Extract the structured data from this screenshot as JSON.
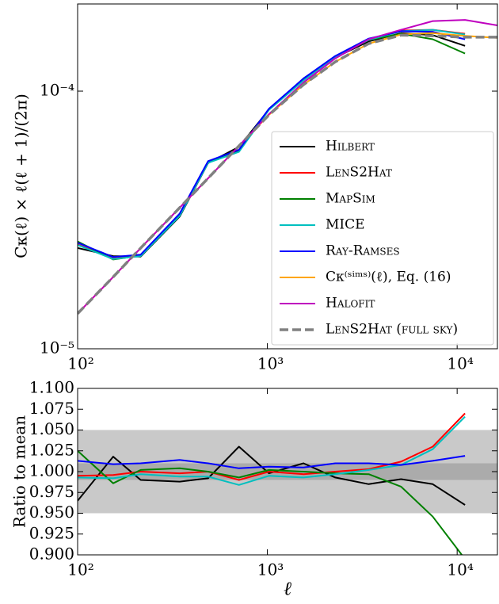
{
  "chart_data": [
    {
      "type": "line",
      "ylabel": "Cκ(ℓ)  × ℓ(ℓ + 1)/(2π)",
      "xscale": "log",
      "yscale": "log",
      "xlim": [
        100,
        16300
      ],
      "ylim": [
        1e-05,
        0.000218
      ],
      "xticks": [
        {
          "value": 100,
          "label": "10²"
        },
        {
          "value": 1000,
          "label": "10³"
        },
        {
          "value": 10000,
          "label": "10⁴"
        }
      ],
      "yticks": [
        {
          "value": 1e-05,
          "label": "10⁻⁵"
        },
        {
          "value": 0.0001,
          "label": "10⁻⁴"
        }
      ],
      "legend": "lower right",
      "series": [
        {
          "name": "Hilbert",
          "smallcaps": true,
          "color": "#000000",
          "x": [
            100,
            154,
            215,
            345,
            487,
            708,
            1020,
            1550,
            2280,
            3420,
            5060,
            7430,
            11000
          ],
          "values": [
            2.46e-05,
            2.29e-05,
            2.28e-05,
            3.26e-05,
            5.26e-05,
            6.08e-05,
            8.48e-05,
            0.000112,
            0.000135,
            0.000156,
            0.000168,
            0.000165,
            0.00015
          ]
        },
        {
          "name": "LenS2Hat",
          "smallcaps": true,
          "color": "#ff0000",
          "x": [
            100,
            154,
            215,
            345,
            487,
            708,
            1020,
            1550,
            2280,
            3420,
            5060,
            7430,
            11000
          ],
          "values": [
            2.54e-05,
            2.24e-05,
            2.3e-05,
            3.29e-05,
            5.3e-05,
            5.84e-05,
            8.5e-05,
            0.000111,
            0.000136,
            0.000158,
            0.000172,
            0.000173,
            0.000167
          ]
        },
        {
          "name": "MapSim",
          "smallcaps": true,
          "color": "#008000",
          "x": [
            100,
            154,
            215,
            345,
            487,
            708,
            1020,
            1550,
            2280,
            3420,
            5060,
            7430,
            11000
          ],
          "values": [
            2.61e-05,
            2.22e-05,
            2.3e-05,
            3.31e-05,
            5.3e-05,
            5.86e-05,
            8.52e-05,
            0.000111,
            0.000136,
            0.000158,
            0.000167,
            0.000159,
            0.00014
          ]
        },
        {
          "name": "MICE",
          "smallcaps": true,
          "color": "#00bfbf",
          "x": [
            100,
            154,
            215,
            345,
            487,
            708,
            1020,
            1550,
            2280,
            3420,
            5060,
            7430,
            11000
          ],
          "values": [
            2.53e-05,
            2.23e-05,
            2.29e-05,
            3.28e-05,
            5.27e-05,
            5.81e-05,
            8.46e-05,
            0.00011,
            0.000136,
            0.000158,
            0.000171,
            0.000173,
            0.000166
          ]
        },
        {
          "name": "Ray-Ramses",
          "smallcaps": true,
          "color": "#0000ff",
          "x": [
            100,
            154,
            215,
            345,
            487,
            708,
            1020,
            1550,
            2280,
            3420,
            5060,
            7430,
            11000
          ],
          "values": [
            2.58e-05,
            2.27e-05,
            2.32e-05,
            3.35e-05,
            5.35e-05,
            5.92e-05,
            8.55e-05,
            0.000112,
            0.000137,
            0.00016,
            0.000171,
            0.00017,
            0.000159
          ]
        },
        {
          "name": "Cκ⁽ˢⁱᵐˢ⁾(ℓ), Eq. (16)",
          "smallcaps": false,
          "color": "#ffa500",
          "x": [
            100,
            154,
            215,
            345,
            487,
            708,
            1020,
            1550,
            2280,
            3420,
            5060,
            7430,
            11000,
            16300
          ],
          "values": [
            1.37e-05,
            1.9e-05,
            2.46e-05,
            3.53e-05,
            4.59e-05,
            6.13e-05,
            8.09e-05,
            0.000106,
            0.00013,
            0.000153,
            0.000166,
            0.000168,
            0.000164,
            0.000161
          ]
        },
        {
          "name": "Halofit",
          "smallcaps": true,
          "color": "#bf00bf",
          "x": [
            100,
            154,
            215,
            345,
            487,
            708,
            1020,
            1550,
            2280,
            3420,
            5060,
            7430,
            11000,
            16300
          ],
          "values": [
            1.37e-05,
            1.9e-05,
            2.46e-05,
            3.53e-05,
            4.59e-05,
            6.13e-05,
            8.15e-05,
            0.000108,
            0.000134,
            0.000159,
            0.000173,
            0.000187,
            0.000189,
            0.00018
          ]
        },
        {
          "name": "LenS2Hat (full sky)",
          "smallcaps": true,
          "color": "#808080",
          "linestyle": "dashed",
          "x": [
            100,
            154,
            215,
            345,
            487,
            708,
            1020,
            1550,
            2280,
            3420,
            5060,
            7430,
            11000,
            16300
          ],
          "values": [
            1.37e-05,
            1.9e-05,
            2.46e-05,
            3.53e-05,
            4.59e-05,
            6.13e-05,
            8.09e-05,
            0.000106,
            0.00013,
            0.000153,
            0.000165,
            0.000164,
            0.000162,
            0.000162
          ]
        }
      ]
    },
    {
      "type": "line",
      "ylabel": "Ratio to mean",
      "xlabel": "ℓ",
      "xscale": "log",
      "xlim": [
        100,
        16300
      ],
      "ylim": [
        0.9,
        1.1
      ],
      "xticks": [
        {
          "value": 100,
          "label": "10²"
        },
        {
          "value": 1000,
          "label": "10³"
        },
        {
          "value": 10000,
          "label": "10⁴"
        }
      ],
      "yticks": [
        {
          "value": 0.9,
          "label": "0.900"
        },
        {
          "value": 0.925,
          "label": "0.925"
        },
        {
          "value": 0.95,
          "label": "0.950"
        },
        {
          "value": 0.975,
          "label": "0.975"
        },
        {
          "value": 1,
          "label": "1.000"
        },
        {
          "value": 1.025,
          "label": "1.025"
        },
        {
          "value": 1.05,
          "label": "1.050"
        },
        {
          "value": 1.075,
          "label": "1.075"
        },
        {
          "value": 1.1,
          "label": "1.100"
        }
      ],
      "shaded_bands": [
        {
          "range": [
            0.95,
            1.05
          ],
          "color": "#bfbfbf"
        },
        {
          "range": [
            0.99,
            1.01
          ],
          "color": "#a6a6a6"
        }
      ],
      "series": [
        {
          "color": "#000000",
          "x": [
            100,
            154,
            215,
            345,
            487,
            708,
            1020,
            1550,
            2280,
            3420,
            5060,
            7430,
            11000
          ],
          "values": [
            0.965,
            1.018,
            0.99,
            0.988,
            0.992,
            1.03,
            0.998,
            1.01,
            0.993,
            0.985,
            0.991,
            0.985,
            0.96
          ]
        },
        {
          "color": "#ff0000",
          "x": [
            100,
            154,
            215,
            345,
            487,
            708,
            1020,
            1550,
            2280,
            3420,
            5060,
            7430,
            11000
          ],
          "values": [
            0.995,
            0.996,
            1.0,
            0.998,
            1.0,
            0.99,
            1.0,
            0.997,
            1.0,
            1.003,
            1.012,
            1.03,
            1.07
          ]
        },
        {
          "color": "#008000",
          "x": [
            100,
            154,
            215,
            345,
            487,
            708,
            1020,
            1550,
            2280,
            3420,
            5060,
            7430,
            11000
          ],
          "values": [
            1.025,
            0.986,
            1.002,
            1.004,
            1.0,
            0.993,
            1.002,
            1.0,
            0.998,
            0.997,
            0.982,
            0.946,
            0.895
          ]
        },
        {
          "color": "#00bfbf",
          "x": [
            100,
            154,
            215,
            345,
            487,
            708,
            1020,
            1550,
            2280,
            3420,
            5060,
            7430,
            11000
          ],
          "values": [
            0.993,
            0.992,
            0.997,
            0.994,
            0.994,
            0.984,
            0.995,
            0.993,
            0.997,
            1.002,
            1.008,
            1.027,
            1.066
          ]
        },
        {
          "color": "#0000ff",
          "x": [
            100,
            154,
            215,
            345,
            487,
            708,
            1020,
            1550,
            2280,
            3420,
            5060,
            7430,
            11000
          ],
          "values": [
            1.013,
            1.009,
            1.01,
            1.014,
            1.01,
            1.004,
            1.006,
            1.005,
            1.01,
            1.01,
            1.008,
            1.013,
            1.019
          ]
        }
      ]
    }
  ]
}
